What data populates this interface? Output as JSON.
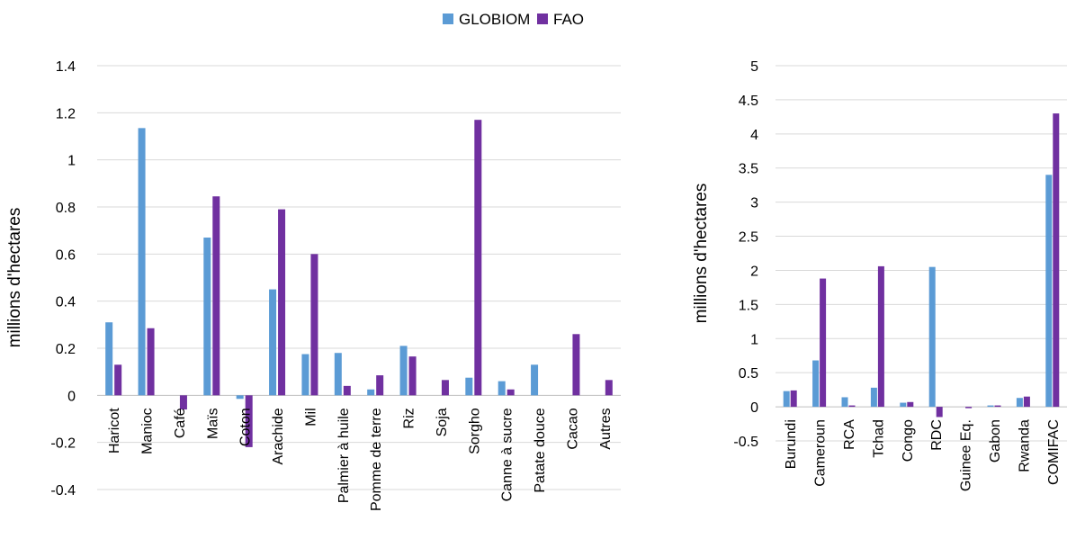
{
  "legend": [
    {
      "label": "GLOBIOM",
      "color": "#5b9bd5"
    },
    {
      "label": "FAO",
      "color": "#7030a0"
    }
  ],
  "chart_data": [
    {
      "type": "bar",
      "ylabel": "millions d'hectares",
      "ylim": [
        -0.4,
        1.4
      ],
      "yticks": [
        "1.4",
        "1.2",
        "1",
        "0.8",
        "0.6",
        "0.4",
        "0.2",
        "0",
        "-0.2",
        "-0.4"
      ],
      "categories": [
        "Haricot",
        "Manioc",
        "Café",
        "Maïs",
        "Coton",
        "Arachide",
        "Mil",
        "Palmier à huile",
        "Pomme de terre",
        "Riz",
        "Soja",
        "Sorgho",
        "Canne à sucre",
        "Patate douce",
        "Cacao",
        "Autres"
      ],
      "series": [
        {
          "name": "GLOBIOM",
          "color": "#5b9bd5",
          "values": [
            0.31,
            1.135,
            0.0,
            0.67,
            -0.015,
            0.45,
            0.175,
            0.18,
            0.025,
            0.21,
            0.0,
            0.075,
            0.06,
            0.13,
            0.0,
            0.0
          ]
        },
        {
          "name": "FAO",
          "color": "#7030a0",
          "values": [
            0.13,
            0.285,
            -0.06,
            0.845,
            -0.22,
            0.79,
            0.6,
            0.04,
            0.085,
            0.165,
            0.065,
            1.17,
            0.025,
            0.0,
            0.26,
            0.065
          ]
        }
      ],
      "grid": true
    },
    {
      "type": "bar",
      "ylabel": "millions d'hectares",
      "ylim": [
        -0.5,
        5
      ],
      "yticks": [
        "5",
        "4.5",
        "4",
        "3.5",
        "3",
        "2.5",
        "2",
        "1.5",
        "1",
        "0.5",
        "0",
        "-0.5"
      ],
      "categories": [
        "Burundi",
        "Cameroun",
        "RCA",
        "Tchad",
        "Congo",
        "RDC",
        "Guinee Eq.",
        "Gabon",
        "Rwanda",
        "COMIFAC"
      ],
      "series": [
        {
          "name": "GLOBIOM",
          "color": "#5b9bd5",
          "values": [
            0.23,
            0.68,
            0.14,
            0.28,
            0.06,
            2.05,
            0.0,
            0.02,
            0.13,
            3.4
          ]
        },
        {
          "name": "FAO",
          "color": "#7030a0",
          "values": [
            0.24,
            1.88,
            0.02,
            2.06,
            0.07,
            -0.15,
            -0.02,
            0.02,
            0.15,
            4.3
          ]
        }
      ],
      "grid": true
    }
  ]
}
